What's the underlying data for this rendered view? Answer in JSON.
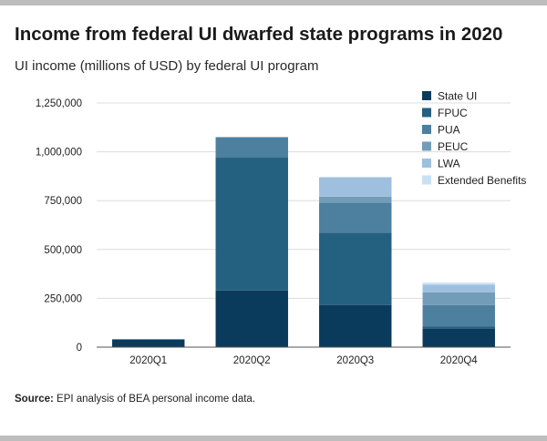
{
  "header": {
    "title": "Income from federal UI dwarfed state programs in 2020",
    "subtitle": "UI income (millions of USD) by federal UI program"
  },
  "footer": {
    "source_label": "Source:",
    "source_text": "EPI analysis of BEA personal income data."
  },
  "chart_data": {
    "type": "bar",
    "stacked": true,
    "title": "Income from federal UI dwarfed state programs in 2020",
    "subtitle": "UI income (millions of USD) by federal UI program",
    "xlabel": "",
    "ylabel": "",
    "categories": [
      "2020Q1",
      "2020Q2",
      "2020Q3",
      "2020Q4"
    ],
    "ylim": [
      0,
      1250000
    ],
    "yticks": [
      0,
      250000,
      500000,
      750000,
      1000000,
      1250000
    ],
    "ytick_labels": [
      "0",
      "250,000",
      "500,000",
      "750,000",
      "1,000,000",
      "1,250,000"
    ],
    "grid": true,
    "legend_position": "top-right",
    "series": [
      {
        "name": "State UI",
        "color": "#0b3b5c",
        "values": [
          40000,
          290000,
          215000,
          95000
        ]
      },
      {
        "name": "FPUC",
        "color": "#24607f",
        "values": [
          0,
          680000,
          370000,
          10000
        ]
      },
      {
        "name": "PUA",
        "color": "#4d7f9e",
        "values": [
          0,
          105000,
          155000,
          110000
        ]
      },
      {
        "name": "PEUC",
        "color": "#739cb9",
        "values": [
          0,
          0,
          30000,
          65000
        ]
      },
      {
        "name": "LWA",
        "color": "#9ec0de",
        "values": [
          0,
          0,
          100000,
          40000
        ]
      },
      {
        "name": "Extended Benefits",
        "color": "#c7e1f5",
        "values": [
          0,
          0,
          0,
          10000
        ]
      }
    ]
  }
}
